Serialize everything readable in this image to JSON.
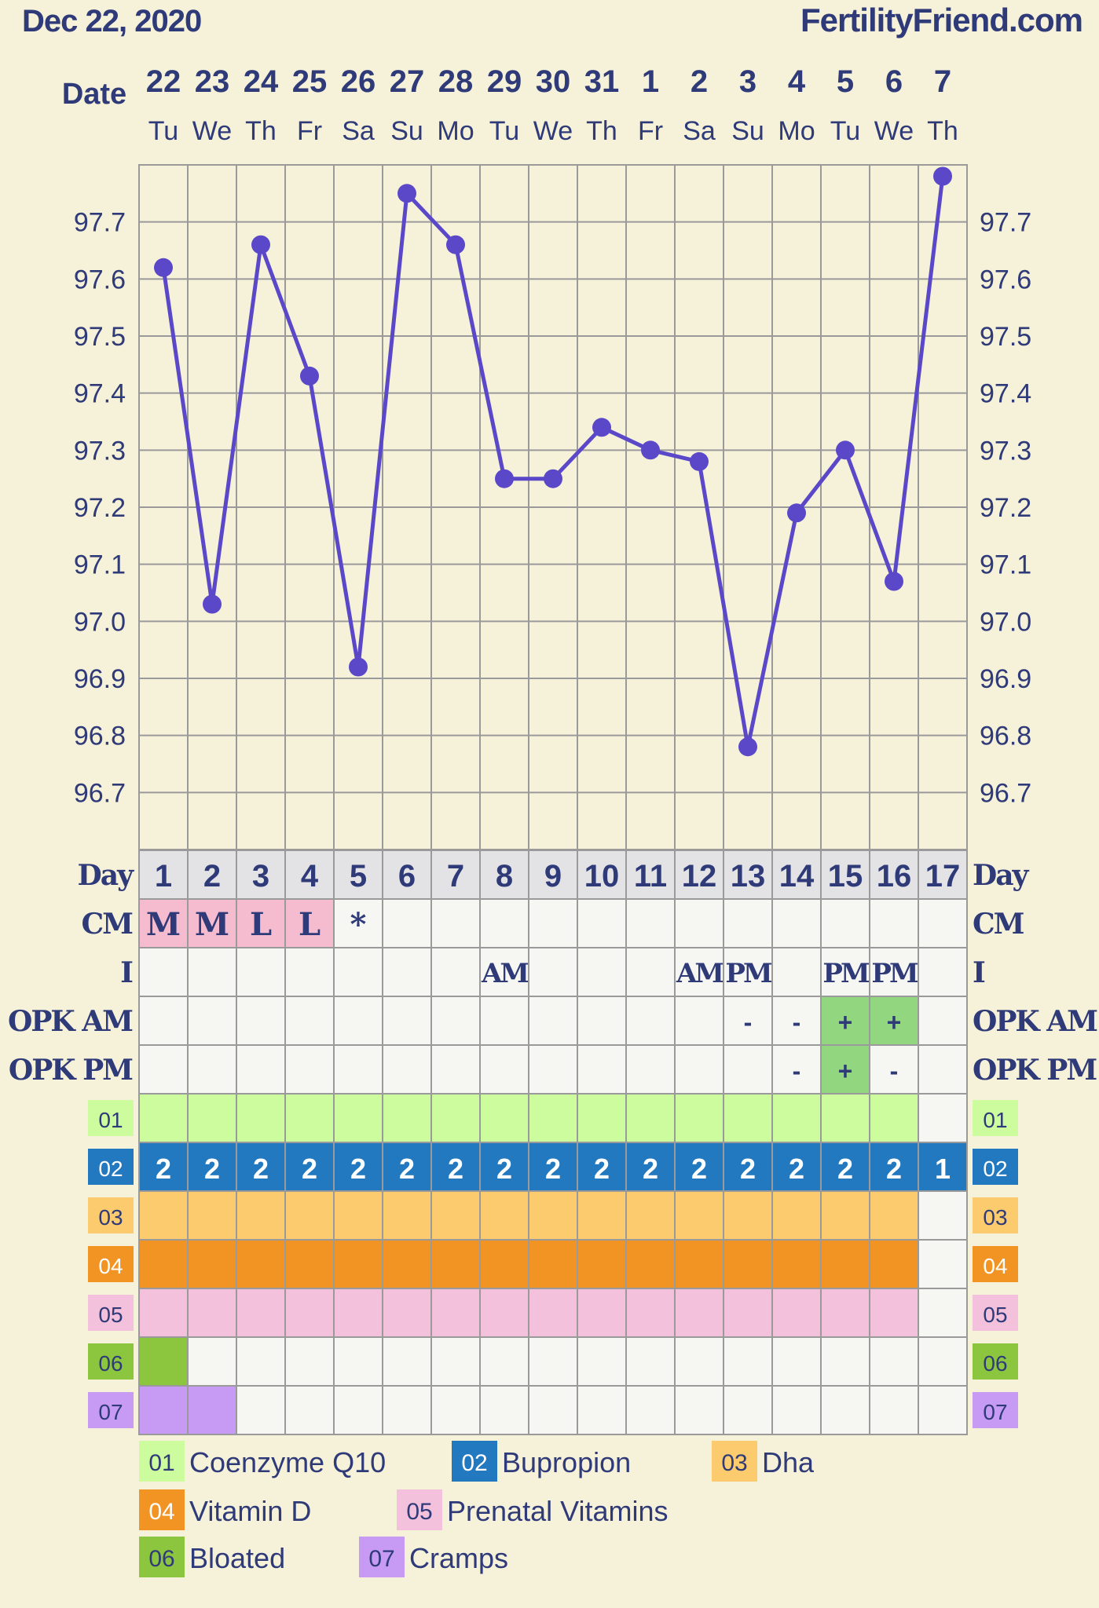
{
  "header": {
    "date": "Dec 22, 2020",
    "site": "FertilityFriend.com"
  },
  "labels": {
    "date": "Date",
    "day": "Day",
    "cm": "CM",
    "i": "I",
    "opk_am": "OPK AM",
    "opk_pm": "OPK PM"
  },
  "columns": {
    "dates": [
      "22",
      "23",
      "24",
      "25",
      "26",
      "27",
      "28",
      "29",
      "30",
      "31",
      "1",
      "2",
      "3",
      "4",
      "5",
      "6",
      "7"
    ],
    "weekdays": [
      "Tu",
      "We",
      "Th",
      "Fr",
      "Sa",
      "Su",
      "Mo",
      "Tu",
      "We",
      "Th",
      "Fr",
      "Sa",
      "Su",
      "Mo",
      "Tu",
      "We",
      "Th"
    ],
    "days": [
      "1",
      "2",
      "3",
      "4",
      "5",
      "6",
      "7",
      "8",
      "9",
      "10",
      "11",
      "12",
      "13",
      "14",
      "15",
      "16",
      "17"
    ]
  },
  "rows": {
    "cm": [
      "M",
      "M",
      "L",
      "L",
      "*",
      "",
      "",
      "",
      "",
      "",
      "",
      "",
      "",
      "",
      "",
      "",
      ""
    ],
    "i": [
      "",
      "",
      "",
      "",
      "",
      "",
      "",
      "AM",
      "",
      "",
      "",
      "AM",
      "PM",
      "",
      "PM",
      "PM",
      ""
    ],
    "opk_am": [
      "",
      "",
      "",
      "",
      "",
      "",
      "",
      "",
      "",
      "",
      "",
      "",
      "-",
      "-",
      "+",
      "+",
      ""
    ],
    "opk_pm": [
      "",
      "",
      "",
      "",
      "",
      "",
      "",
      "",
      "",
      "",
      "",
      "",
      "",
      "-",
      "+",
      "-",
      ""
    ]
  },
  "colors": {
    "background": "#f6f1d9",
    "line": "#5a48c8",
    "text": "#2f3a78",
    "cm_pink": "#f5bcd0",
    "opk_green": "#92d77f",
    "day_row": "#e3e3e6",
    "empty_cell": "#f6f6f2",
    "grid": "#9a9a9a"
  },
  "tracks": [
    {
      "code": "01",
      "name": "Coenzyme Q10",
      "color": "#cdfc9e",
      "text_color": "#2f3a78",
      "values": [
        "",
        "",
        "",
        "",
        "",
        "",
        "",
        "",
        "",
        "",
        "",
        "",
        "",
        "",
        "",
        "",
        ""
      ],
      "active": [
        1,
        1,
        1,
        1,
        1,
        1,
        1,
        1,
        1,
        1,
        1,
        1,
        1,
        1,
        1,
        1,
        0
      ]
    },
    {
      "code": "02",
      "name": "Bupropion",
      "color": "#2379bf",
      "text_color": "#ffffff",
      "values": [
        "2",
        "2",
        "2",
        "2",
        "2",
        "2",
        "2",
        "2",
        "2",
        "2",
        "2",
        "2",
        "2",
        "2",
        "2",
        "2",
        "1"
      ],
      "active": [
        1,
        1,
        1,
        1,
        1,
        1,
        1,
        1,
        1,
        1,
        1,
        1,
        1,
        1,
        1,
        1,
        1
      ]
    },
    {
      "code": "03",
      "name": "Dha",
      "color": "#fccb6d",
      "text_color": "#2f3a78",
      "values": [
        "",
        "",
        "",
        "",
        "",
        "",
        "",
        "",
        "",
        "",
        "",
        "",
        "",
        "",
        "",
        "",
        ""
      ],
      "active": [
        1,
        1,
        1,
        1,
        1,
        1,
        1,
        1,
        1,
        1,
        1,
        1,
        1,
        1,
        1,
        1,
        0
      ]
    },
    {
      "code": "04",
      "name": "Vitamin D",
      "color": "#f19423",
      "text_color": "#ffffff",
      "values": [
        "",
        "",
        "",
        "",
        "",
        "",
        "",
        "",
        "",
        "",
        "",
        "",
        "",
        "",
        "",
        "",
        ""
      ],
      "active": [
        1,
        1,
        1,
        1,
        1,
        1,
        1,
        1,
        1,
        1,
        1,
        1,
        1,
        1,
        1,
        1,
        0
      ]
    },
    {
      "code": "05",
      "name": "Prenatal Vitamins",
      "color": "#f4c1dc",
      "text_color": "#2f3a78",
      "values": [
        "",
        "",
        "",
        "",
        "",
        "",
        "",
        "",
        "",
        "",
        "",
        "",
        "",
        "",
        "",
        "",
        ""
      ],
      "active": [
        1,
        1,
        1,
        1,
        1,
        1,
        1,
        1,
        1,
        1,
        1,
        1,
        1,
        1,
        1,
        1,
        0
      ]
    },
    {
      "code": "06",
      "name": "Bloated",
      "color": "#8cc63f",
      "text_color": "#2f3a78",
      "values": [
        "",
        "",
        "",
        "",
        "",
        "",
        "",
        "",
        "",
        "",
        "",
        "",
        "",
        "",
        "",
        "",
        ""
      ],
      "active": [
        1,
        0,
        0,
        0,
        0,
        0,
        0,
        0,
        0,
        0,
        0,
        0,
        0,
        0,
        0,
        0,
        0
      ]
    },
    {
      "code": "07",
      "name": "Cramps",
      "color": "#c79bf4",
      "text_color": "#2f3a78",
      "values": [
        "",
        "",
        "",
        "",
        "",
        "",
        "",
        "",
        "",
        "",
        "",
        "",
        "",
        "",
        "",
        "",
        ""
      ],
      "active": [
        1,
        1,
        0,
        0,
        0,
        0,
        0,
        0,
        0,
        0,
        0,
        0,
        0,
        0,
        0,
        0,
        0
      ]
    }
  ],
  "chart_data": {
    "type": "line",
    "title": "",
    "xlabel": "Day",
    "ylabel": "",
    "x": [
      1,
      2,
      3,
      4,
      5,
      6,
      7,
      8,
      9,
      10,
      11,
      12,
      13,
      14,
      15,
      16,
      17
    ],
    "ylim": [
      96.6,
      97.8
    ],
    "yticks": [
      "96.7",
      "96.8",
      "96.9",
      "97.0",
      "97.1",
      "97.2",
      "97.3",
      "97.4",
      "97.5",
      "97.6",
      "97.7"
    ],
    "grid": true,
    "series": [
      {
        "values": [
          97.62,
          97.03,
          97.66,
          97.43,
          96.92,
          97.75,
          97.66,
          97.25,
          97.25,
          97.34,
          97.3,
          97.28,
          96.78,
          97.19,
          97.3,
          97.07,
          97.78
        ]
      }
    ]
  }
}
